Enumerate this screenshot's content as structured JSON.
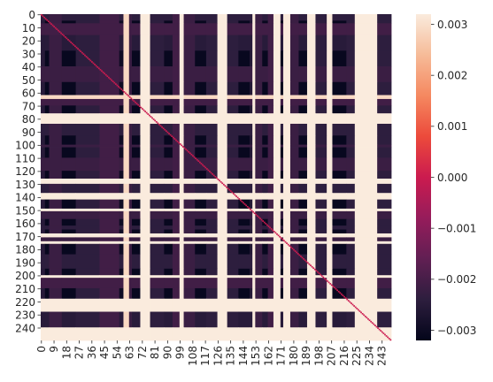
{
  "chart_data": {
    "type": "heatmap",
    "title": "",
    "xlabel": "",
    "ylabel": "",
    "n": 250,
    "value_range": [
      -0.0032,
      0.0032
    ],
    "colormap": "rocket",
    "x_tick_labels": [
      "0",
      "9",
      "18",
      "27",
      "36",
      "45",
      "54",
      "63",
      "72",
      "81",
      "90",
      "99",
      "108",
      "117",
      "126",
      "135",
      "144",
      "153",
      "162",
      "171",
      "180",
      "189",
      "198",
      "207",
      "216",
      "225",
      "234",
      "243"
    ],
    "y_tick_labels": [
      "0",
      "10",
      "20",
      "30",
      "40",
      "50",
      "60",
      "70",
      "80",
      "90",
      "100",
      "110",
      "120",
      "130",
      "140",
      "150",
      "160",
      "170",
      "180",
      "190",
      "200",
      "210",
      "220",
      "230",
      "240"
    ],
    "colorbar": {
      "ticks": [
        {
          "value": 0.003,
          "label": "0.003"
        },
        {
          "value": 0.002,
          "label": "0.002"
        },
        {
          "value": 0.001,
          "label": "0.001"
        },
        {
          "value": 0.0,
          "label": "0.000"
        },
        {
          "value": -0.001,
          "label": "−0.001"
        },
        {
          "value": -0.002,
          "label": "−0.002"
        },
        {
          "value": -0.003,
          "label": "−0.003"
        }
      ]
    },
    "column_bands": [
      {
        "start": 0,
        "end": 3,
        "value": -0.0025
      },
      {
        "start": 3,
        "end": 6,
        "value": -0.0031
      },
      {
        "start": 6,
        "end": 15,
        "value": -0.0022
      },
      {
        "start": 15,
        "end": 25,
        "value": -0.0031
      },
      {
        "start": 25,
        "end": 42,
        "value": -0.0024
      },
      {
        "start": 42,
        "end": 56,
        "value": -0.0021
      },
      {
        "start": 56,
        "end": 59,
        "value": -0.003
      },
      {
        "start": 59,
        "end": 63,
        "value": 0.0029
      },
      {
        "start": 63,
        "end": 65,
        "value": -0.0022
      },
      {
        "start": 65,
        "end": 71,
        "value": -0.0031
      },
      {
        "start": 71,
        "end": 78,
        "value": 0.0032
      },
      {
        "start": 78,
        "end": 88,
        "value": -0.0024
      },
      {
        "start": 88,
        "end": 94,
        "value": -0.0031
      },
      {
        "start": 94,
        "end": 99,
        "value": -0.0021
      },
      {
        "start": 99,
        "end": 102,
        "value": 0.0032
      },
      {
        "start": 102,
        "end": 110,
        "value": -0.0022
      },
      {
        "start": 110,
        "end": 118,
        "value": -0.0031
      },
      {
        "start": 118,
        "end": 126,
        "value": -0.0024
      },
      {
        "start": 126,
        "end": 133,
        "value": 0.0032
      },
      {
        "start": 133,
        "end": 141,
        "value": -0.0024
      },
      {
        "start": 141,
        "end": 149,
        "value": -0.0031
      },
      {
        "start": 149,
        "end": 151,
        "value": -0.0026
      },
      {
        "start": 151,
        "end": 153,
        "value": 0.0032
      },
      {
        "start": 153,
        "end": 158,
        "value": -0.0022
      },
      {
        "start": 158,
        "end": 162,
        "value": -0.0031
      },
      {
        "start": 162,
        "end": 166,
        "value": -0.0021
      },
      {
        "start": 166,
        "end": 171,
        "value": 0.0032
      },
      {
        "start": 171,
        "end": 173,
        "value": -0.0031
      },
      {
        "start": 173,
        "end": 178,
        "value": 0.0032
      },
      {
        "start": 178,
        "end": 184,
        "value": -0.0022
      },
      {
        "start": 184,
        "end": 190,
        "value": -0.0031
      },
      {
        "start": 190,
        "end": 196,
        "value": 0.0032
      },
      {
        "start": 196,
        "end": 204,
        "value": -0.0024
      },
      {
        "start": 204,
        "end": 208,
        "value": 0.0032
      },
      {
        "start": 208,
        "end": 218,
        "value": -0.0031
      },
      {
        "start": 218,
        "end": 224,
        "value": -0.0024
      },
      {
        "start": 224,
        "end": 240,
        "value": 0.0032
      },
      {
        "start": 240,
        "end": 250,
        "value": -0.0024
      }
    ],
    "row_bands": [
      {
        "start": 0,
        "end": 5,
        "value": -0.0024
      },
      {
        "start": 5,
        "end": 7,
        "value": -0.0031
      },
      {
        "start": 7,
        "end": 16,
        "value": -0.0021
      },
      {
        "start": 16,
        "end": 28,
        "value": -0.0025
      },
      {
        "start": 28,
        "end": 40,
        "value": -0.0031
      },
      {
        "start": 40,
        "end": 52,
        "value": -0.0022
      },
      {
        "start": 52,
        "end": 62,
        "value": -0.0031
      },
      {
        "start": 62,
        "end": 65,
        "value": 0.0029
      },
      {
        "start": 65,
        "end": 70,
        "value": -0.0021
      },
      {
        "start": 70,
        "end": 76,
        "value": -0.0031
      },
      {
        "start": 76,
        "end": 84,
        "value": 0.0032
      },
      {
        "start": 84,
        "end": 93,
        "value": -0.0024
      },
      {
        "start": 93,
        "end": 100,
        "value": -0.0031
      },
      {
        "start": 100,
        "end": 102,
        "value": -0.0022
      },
      {
        "start": 102,
        "end": 110,
        "value": -0.0031
      },
      {
        "start": 110,
        "end": 120,
        "value": -0.0022
      },
      {
        "start": 120,
        "end": 126,
        "value": -0.0031
      },
      {
        "start": 126,
        "end": 130,
        "value": 0.0032
      },
      {
        "start": 130,
        "end": 137,
        "value": -0.0024
      },
      {
        "start": 137,
        "end": 142,
        "value": 0.0032
      },
      {
        "start": 142,
        "end": 149,
        "value": -0.0031
      },
      {
        "start": 149,
        "end": 151,
        "value": 0.0032
      },
      {
        "start": 151,
        "end": 157,
        "value": -0.0022
      },
      {
        "start": 157,
        "end": 162,
        "value": -0.0031
      },
      {
        "start": 162,
        "end": 165,
        "value": -0.0024
      },
      {
        "start": 165,
        "end": 168,
        "value": -0.0031
      },
      {
        "start": 168,
        "end": 171,
        "value": 0.0032
      },
      {
        "start": 171,
        "end": 174,
        "value": -0.0022
      },
      {
        "start": 174,
        "end": 176,
        "value": 0.0032
      },
      {
        "start": 176,
        "end": 184,
        "value": -0.0031
      },
      {
        "start": 184,
        "end": 195,
        "value": -0.0024
      },
      {
        "start": 195,
        "end": 200,
        "value": -0.0031
      },
      {
        "start": 200,
        "end": 202,
        "value": 0.0032
      },
      {
        "start": 202,
        "end": 210,
        "value": -0.0021
      },
      {
        "start": 210,
        "end": 218,
        "value": -0.0031
      },
      {
        "start": 218,
        "end": 228,
        "value": 0.0032
      },
      {
        "start": 228,
        "end": 240,
        "value": -0.0025
      },
      {
        "start": 240,
        "end": 250,
        "value": 0.0032
      }
    ],
    "diagonal_value": 0.0,
    "grid": false
  }
}
